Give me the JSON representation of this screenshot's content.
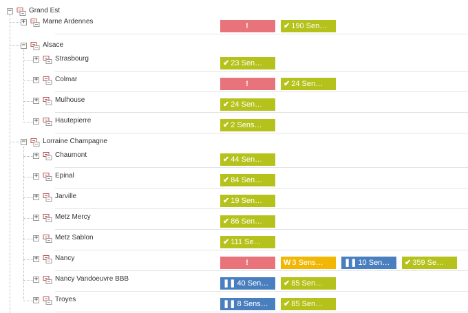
{
  "tree": {
    "root": {
      "label": "Grand Est",
      "toggle": "−"
    },
    "groups": [
      {
        "label": "Marne Ardennes",
        "toggle": "+",
        "badges": [
          {
            "type": "red",
            "icon": "!",
            "text": ""
          },
          {
            "type": "green",
            "icon": "✔",
            "text": "190 Sen…"
          }
        ]
      },
      {
        "label": "Alsace",
        "toggle": "−",
        "children": [
          {
            "label": "Strasbourg",
            "toggle": "+",
            "badges": [
              {
                "type": "green",
                "icon": "✔",
                "text": "23 Sen…"
              }
            ]
          },
          {
            "label": "Colmar",
            "toggle": "+",
            "badges": [
              {
                "type": "red",
                "icon": "!",
                "text": ""
              },
              {
                "type": "green",
                "icon": "✔",
                "text": "24 Sen…"
              }
            ]
          },
          {
            "label": "Mulhouse",
            "toggle": "+",
            "badges": [
              {
                "type": "green",
                "icon": "✔",
                "text": "24 Sen…"
              }
            ]
          },
          {
            "label": "Hautepierre",
            "toggle": "+",
            "badges": [
              {
                "type": "green",
                "icon": "✔",
                "text": "2 Sens…"
              }
            ]
          }
        ]
      },
      {
        "label": "Lorraine Champagne",
        "toggle": "−",
        "children": [
          {
            "label": "Chaumont",
            "toggle": "+",
            "badges": [
              {
                "type": "green",
                "icon": "✔",
                "text": "44 Sen…"
              }
            ]
          },
          {
            "label": "Epinal",
            "toggle": "+",
            "badges": [
              {
                "type": "green",
                "icon": "✔",
                "text": "84 Sen…"
              }
            ]
          },
          {
            "label": "Jarville",
            "toggle": "+",
            "badges": [
              {
                "type": "green",
                "icon": "✔",
                "text": "19 Sen…"
              }
            ]
          },
          {
            "label": "Metz Mercy",
            "toggle": "+",
            "badges": [
              {
                "type": "green",
                "icon": "✔",
                "text": "86 Sen…"
              }
            ]
          },
          {
            "label": "Metz Sablon",
            "toggle": "+",
            "badges": [
              {
                "type": "green",
                "icon": "✔",
                "text": "111 Se…"
              }
            ]
          },
          {
            "label": "Nancy",
            "toggle": "+",
            "badges": [
              {
                "type": "red",
                "icon": "!",
                "text": ""
              },
              {
                "type": "yellow",
                "icon": "W",
                "text": "3 Sens…"
              },
              {
                "type": "blue",
                "icon": "❚❚",
                "text": "10 Sen…"
              },
              {
                "type": "green",
                "icon": "✔",
                "text": "359 Se…"
              }
            ]
          },
          {
            "label": "Nancy Vandoeuvre BBB",
            "toggle": "+",
            "badges": [
              {
                "type": "blue",
                "icon": "❚❚",
                "text": "40 Sen…"
              },
              {
                "type": "green",
                "icon": "✔",
                "text": "85 Sen…"
              }
            ]
          },
          {
            "label": "Troyes",
            "toggle": "+",
            "badges": [
              {
                "type": "blue",
                "icon": "❚❚",
                "text": "8 Sens…"
              },
              {
                "type": "green",
                "icon": "✔",
                "text": "85 Sen…"
              }
            ]
          }
        ]
      }
    ]
  },
  "colors": {
    "red": "#e8737a",
    "green": "#b5c21b",
    "yellow": "#f2b705",
    "blue": "#4a7fbf"
  },
  "icons": {
    "node": "device-group-icon",
    "ok": "check-icon",
    "error": "exclamation-icon",
    "warning": "warning-icon",
    "paused": "pause-icon"
  }
}
